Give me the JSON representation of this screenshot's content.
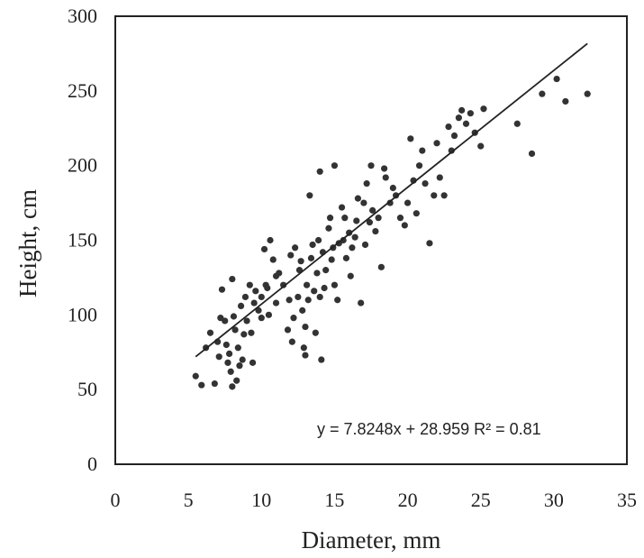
{
  "chart_data": {
    "type": "scatter",
    "xlabel": "Diameter, mm",
    "ylabel": "Height, cm",
    "xlim": [
      0,
      35
    ],
    "ylim": [
      0,
      300
    ],
    "x_ticks": [
      "0",
      "5",
      "10",
      "15",
      "20",
      "25",
      "30",
      "35"
    ],
    "y_ticks": [
      "0",
      "50",
      "100",
      "150",
      "200",
      "250",
      "300"
    ],
    "grid": false,
    "legend": "none",
    "marker_color": "#333333",
    "trendline": {
      "slope": 7.8248,
      "intercept": 28.959,
      "x_range": [
        5.5,
        32.3
      ],
      "color": "#222222"
    },
    "annotation": "y = 7.8248x + 28.959   R² = 0.81",
    "points": [
      [
        5.5,
        59
      ],
      [
        5.9,
        53
      ],
      [
        6.2,
        78
      ],
      [
        6.5,
        88
      ],
      [
        6.8,
        54
      ],
      [
        7.0,
        82
      ],
      [
        7.1,
        72
      ],
      [
        7.2,
        98
      ],
      [
        7.3,
        117
      ],
      [
        7.5,
        96
      ],
      [
        7.6,
        80
      ],
      [
        7.7,
        68
      ],
      [
        7.8,
        74
      ],
      [
        7.9,
        62
      ],
      [
        8.0,
        124
      ],
      [
        8.0,
        52
      ],
      [
        8.1,
        99
      ],
      [
        8.2,
        90
      ],
      [
        8.3,
        56
      ],
      [
        8.4,
        78
      ],
      [
        8.5,
        66
      ],
      [
        8.6,
        106
      ],
      [
        8.7,
        70
      ],
      [
        8.8,
        87
      ],
      [
        8.9,
        112
      ],
      [
        9.0,
        96
      ],
      [
        9.2,
        120
      ],
      [
        9.3,
        88
      ],
      [
        9.4,
        68
      ],
      [
        9.5,
        108
      ],
      [
        9.6,
        116
      ],
      [
        9.8,
        103
      ],
      [
        10.0,
        98
      ],
      [
        10.0,
        112
      ],
      [
        10.2,
        144
      ],
      [
        10.3,
        120
      ],
      [
        10.4,
        118
      ],
      [
        10.5,
        100
      ],
      [
        10.6,
        150
      ],
      [
        10.8,
        137
      ],
      [
        11.0,
        126
      ],
      [
        11.0,
        108
      ],
      [
        11.2,
        128
      ],
      [
        11.5,
        120
      ],
      [
        11.8,
        90
      ],
      [
        11.9,
        110
      ],
      [
        12.0,
        140
      ],
      [
        12.1,
        82
      ],
      [
        12.2,
        98
      ],
      [
        12.3,
        145
      ],
      [
        12.5,
        112
      ],
      [
        12.6,
        130
      ],
      [
        12.7,
        136
      ],
      [
        12.8,
        103
      ],
      [
        12.9,
        78
      ],
      [
        13.0,
        92
      ],
      [
        13.0,
        73
      ],
      [
        13.1,
        120
      ],
      [
        13.2,
        110
      ],
      [
        13.3,
        180
      ],
      [
        13.4,
        138
      ],
      [
        13.5,
        147
      ],
      [
        13.6,
        116
      ],
      [
        13.7,
        88
      ],
      [
        13.8,
        128
      ],
      [
        13.9,
        150
      ],
      [
        14.0,
        196
      ],
      [
        14.0,
        112
      ],
      [
        14.1,
        70
      ],
      [
        14.2,
        142
      ],
      [
        14.3,
        118
      ],
      [
        14.4,
        130
      ],
      [
        14.6,
        158
      ],
      [
        14.7,
        165
      ],
      [
        14.8,
        137
      ],
      [
        14.9,
        145
      ],
      [
        15.0,
        200
      ],
      [
        15.0,
        120
      ],
      [
        15.2,
        110
      ],
      [
        15.3,
        148
      ],
      [
        15.5,
        172
      ],
      [
        15.6,
        150
      ],
      [
        15.7,
        165
      ],
      [
        15.8,
        138
      ],
      [
        16.0,
        155
      ],
      [
        16.1,
        126
      ],
      [
        16.2,
        145
      ],
      [
        16.4,
        152
      ],
      [
        16.5,
        163
      ],
      [
        16.6,
        178
      ],
      [
        16.8,
        108
      ],
      [
        17.0,
        175
      ],
      [
        17.1,
        147
      ],
      [
        17.2,
        188
      ],
      [
        17.4,
        162
      ],
      [
        17.5,
        200
      ],
      [
        17.6,
        170
      ],
      [
        17.8,
        156
      ],
      [
        18.0,
        165
      ],
      [
        18.2,
        132
      ],
      [
        18.4,
        198
      ],
      [
        18.5,
        192
      ],
      [
        18.8,
        175
      ],
      [
        19.0,
        185
      ],
      [
        19.2,
        180
      ],
      [
        19.5,
        165
      ],
      [
        19.8,
        160
      ],
      [
        20.0,
        175
      ],
      [
        20.2,
        218
      ],
      [
        20.4,
        190
      ],
      [
        20.6,
        168
      ],
      [
        20.8,
        200
      ],
      [
        21.0,
        210
      ],
      [
        21.2,
        188
      ],
      [
        21.5,
        148
      ],
      [
        21.8,
        180
      ],
      [
        22.0,
        215
      ],
      [
        22.2,
        192
      ],
      [
        22.5,
        180
      ],
      [
        22.8,
        226
      ],
      [
        23.0,
        210
      ],
      [
        23.2,
        220
      ],
      [
        23.5,
        232
      ],
      [
        23.7,
        237
      ],
      [
        24.0,
        228
      ],
      [
        24.3,
        235
      ],
      [
        24.6,
        222
      ],
      [
        25.0,
        213
      ],
      [
        25.2,
        238
      ],
      [
        27.5,
        228
      ],
      [
        28.5,
        208
      ],
      [
        29.2,
        248
      ],
      [
        30.2,
        258
      ],
      [
        30.8,
        243
      ],
      [
        32.3,
        248
      ]
    ]
  }
}
